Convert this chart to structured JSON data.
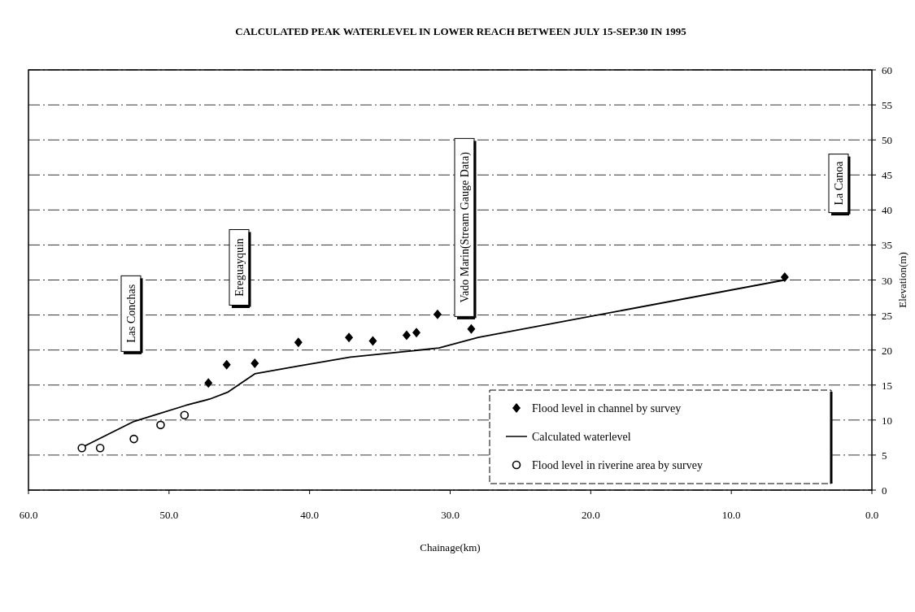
{
  "chart_data": {
    "type": "scatter",
    "title": "CALCULATED PEAK WATERLEVEL IN LOWER REACH BETWEEN JULY 15-SEP.30 IN 1995",
    "xlabel": "Chainage(km)",
    "ylabel": "Elevation(m)",
    "xlim": [
      60,
      0
    ],
    "xticks": [
      {
        "value": 60,
        "label": "60.0"
      },
      {
        "value": 50,
        "label": "50.0"
      },
      {
        "value": 40,
        "label": "40.0"
      },
      {
        "value": 30,
        "label": "30.0"
      },
      {
        "value": 20,
        "label": "20.0"
      },
      {
        "value": 10,
        "label": "10.0"
      },
      {
        "value": 0,
        "label": "0.0"
      }
    ],
    "ylim": [
      0,
      60
    ],
    "yticks": [
      0,
      5,
      10,
      15,
      20,
      25,
      30,
      35,
      40,
      45,
      50,
      55,
      60
    ],
    "grid": "y",
    "legend": "bottom right",
    "series": [
      {
        "name": "Flood level in channel by survey",
        "marker": "diamond",
        "color": "#000000",
        "x": [
          47.2,
          45.9,
          43.9,
          40.8,
          37.2,
          35.5,
          33.1,
          32.4,
          30.9,
          28.5,
          6.2
        ],
        "values": [
          15.3,
          17.9,
          18.1,
          21.1,
          21.8,
          21.3,
          22.1,
          22.5,
          25.1,
          23,
          30.4
        ]
      },
      {
        "name": "Calculated waterlevel",
        "type": "line",
        "marker": "none",
        "line_style": "solid",
        "color": "#000000",
        "x": [
          56.2,
          52.5,
          48.8,
          47.1,
          45.8,
          43.9,
          40.8,
          37.1,
          33.1,
          30.8,
          28,
          6.2
        ],
        "values": [
          6.1,
          9.8,
          12.1,
          13,
          14,
          16.6,
          17.7,
          19,
          19.8,
          20.3,
          21.8,
          30
        ]
      },
      {
        "name": "Flood level in riverine area by survey",
        "marker": "circle",
        "color": "#000000",
        "x": [
          56.2,
          54.9,
          52.5,
          50.6,
          48.9
        ],
        "values": [
          6,
          6,
          7.3,
          9.3,
          10.7
        ]
      }
    ],
    "annotations": [
      "Las Conchas",
      "Ereguayquin",
      "Vado Marin(Stream Gauge Data)",
      "La Canoa"
    ]
  }
}
